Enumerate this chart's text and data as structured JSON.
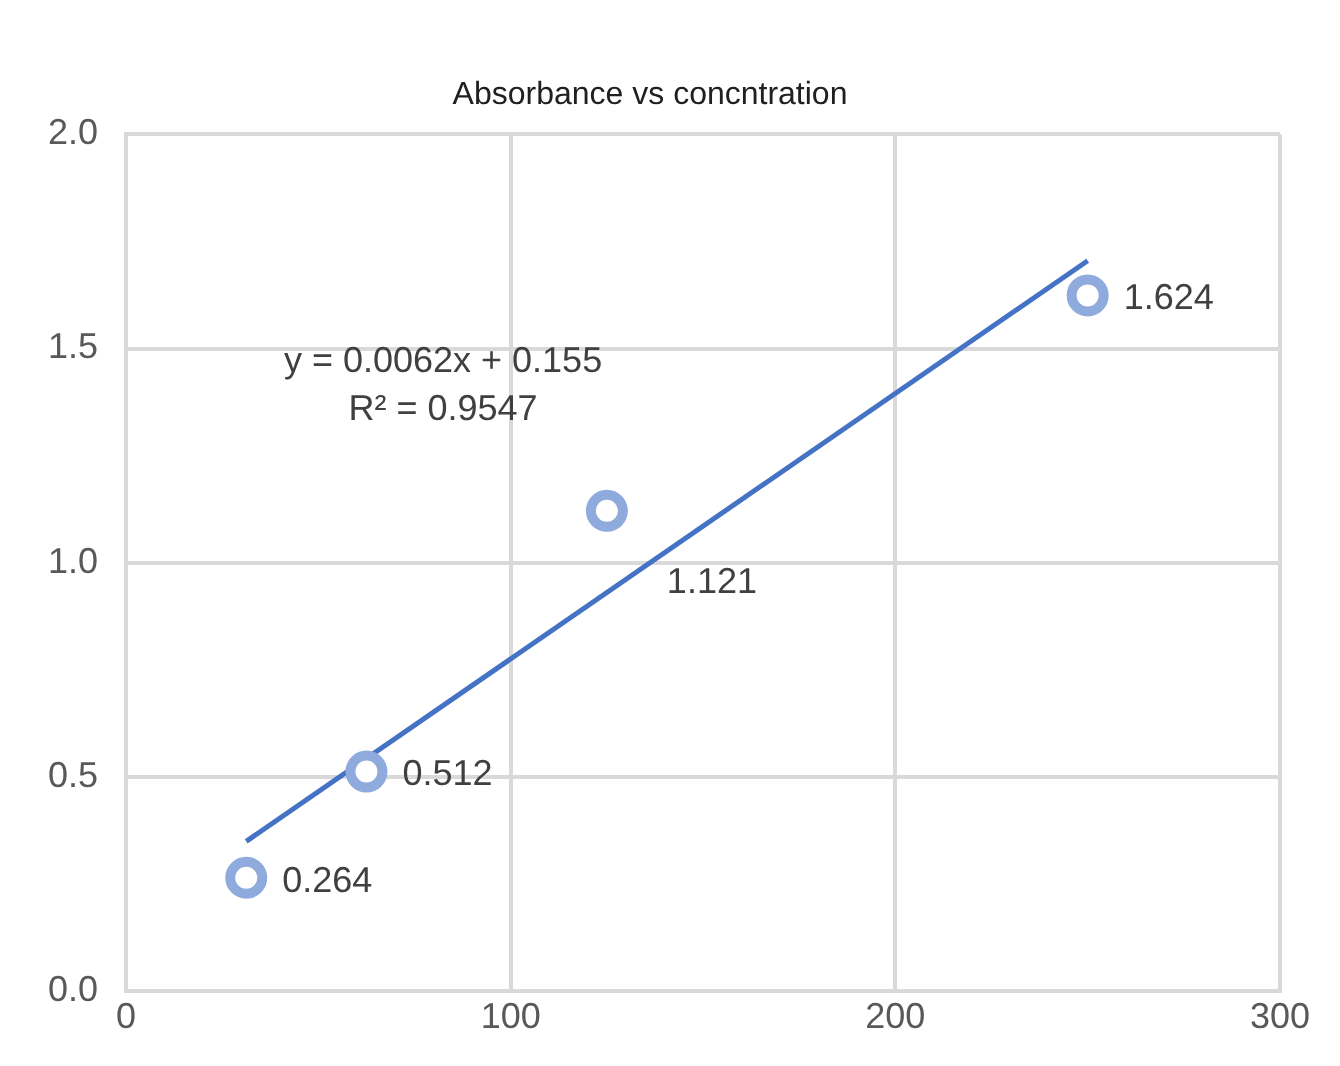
{
  "chart_data": {
    "type": "scatter",
    "title": "Absorbance vs concntration",
    "xlim": [
      0,
      300
    ],
    "xticks": [
      0,
      100,
      200,
      300
    ],
    "ylim": [
      0,
      2
    ],
    "yticks": [
      {
        "value": 0,
        "label": "0.0"
      },
      {
        "value": 0.5,
        "label": "0.5"
      },
      {
        "value": 1,
        "label": "1.0"
      },
      {
        "value": 1.5,
        "label": "1.5"
      },
      {
        "value": 2,
        "label": "2.0"
      }
    ],
    "grid": true,
    "legend": false,
    "marker": "circle",
    "series": [
      {
        "color": "#8faadc",
        "x": [
          31.25,
          62.5,
          125,
          250
        ],
        "values": [
          0.264,
          0.512,
          1.121,
          1.624
        ],
        "value_labels": [
          "0.264",
          "0.512",
          "1.121",
          "1.624"
        ]
      },
      {
        "type": "line",
        "color": "#4472c4",
        "x": [
          31.25,
          250
        ],
        "values": [
          0.349,
          1.705
        ],
        "marker": "none",
        "line_style": "solid"
      }
    ],
    "annotations": [
      "y = 0.0062x + 0.155",
      "R² = 0.9547"
    ]
  }
}
